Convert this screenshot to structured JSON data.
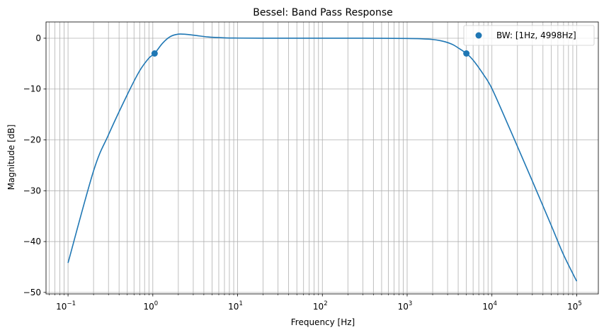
{
  "chart_data": {
    "type": "line",
    "title": "Bessel: Band Pass Response",
    "xlabel": "Frequency [Hz]",
    "ylabel": "Magnitude [dB]",
    "xscale": "log",
    "xlim": [
      0.055,
      180000
    ],
    "ylim": [
      -50.3,
      3.2
    ],
    "x_ticks": [
      {
        "value": 0.1,
        "base": "10",
        "exp": "−1"
      },
      {
        "value": 1,
        "base": "10",
        "exp": "0"
      },
      {
        "value": 10,
        "base": "10",
        "exp": "1"
      },
      {
        "value": 100,
        "base": "10",
        "exp": "2"
      },
      {
        "value": 1000,
        "base": "10",
        "exp": "3"
      },
      {
        "value": 10000,
        "base": "10",
        "exp": "4"
      },
      {
        "value": 100000,
        "base": "10",
        "exp": "5"
      }
    ],
    "y_ticks": [
      {
        "value": 0,
        "label": "0"
      },
      {
        "value": -10,
        "label": "−10"
      },
      {
        "value": -20,
        "label": "−20"
      },
      {
        "value": -30,
        "label": "−30"
      },
      {
        "value": -40,
        "label": "−40"
      },
      {
        "value": -50,
        "label": "−50"
      }
    ],
    "grid": true,
    "grid_minor": true,
    "legend_position": "top-right",
    "series": [
      {
        "color": "#1f77b4",
        "x": [
          0.1,
          0.2,
          0.3,
          0.5,
          0.7,
          0.9,
          1.05,
          1.3,
          1.6,
          2.0,
          2.5,
          3.2,
          4.5,
          7,
          10,
          20,
          50,
          100,
          300,
          1000,
          1500,
          2000,
          2500,
          3000,
          3500,
          4000,
          5000,
          6000,
          8000,
          10000,
          15000,
          20000,
          30000,
          50000,
          70000,
          100000
        ],
        "y": [
          -44.2,
          -26.1,
          -19.0,
          -11.1,
          -6.4,
          -3.9,
          -3.0,
          -1.0,
          0.3,
          0.8,
          0.75,
          0.55,
          0.25,
          0.08,
          0.03,
          0.0,
          0.0,
          0.0,
          0.0,
          -0.05,
          -0.12,
          -0.25,
          -0.5,
          -0.85,
          -1.3,
          -1.9,
          -3.0,
          -4.3,
          -7.2,
          -9.9,
          -16.5,
          -21.3,
          -28.1,
          -36.8,
          -42.6,
          -47.8
        ]
      }
    ],
    "markers": {
      "name": "BW: [1Hz, 4998Hz]",
      "color": "#1f77b4",
      "points": [
        {
          "x": 1.05,
          "y": -3.0
        },
        {
          "x": 4998,
          "y": -3.0
        }
      ]
    }
  }
}
